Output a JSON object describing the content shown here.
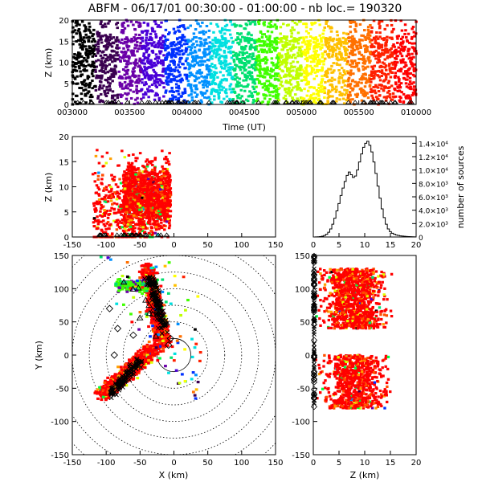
{
  "title": "ABFM - 06/17/01 00:30:00 - 01:00:00 - nb loc.= 190320",
  "chart_data": [
    {
      "panel": "time-height",
      "type": "scatter",
      "xlabel": "Time (UT)",
      "ylabel": "Z (km)",
      "x_ticks": [
        "003000",
        "003500",
        "004000",
        "004500",
        "005000",
        "005500",
        "010000"
      ],
      "y_ticks": [
        "0",
        "5",
        "10",
        "15",
        "20"
      ],
      "xlim": [
        "00:30:00",
        "01:00:00"
      ],
      "ylim": [
        0,
        20
      ],
      "color_encoding": "time (rainbow: black → purple → blue → cyan → green → yellow → red)",
      "dense_band_z_km": [
        0,
        16
      ]
    },
    {
      "panel": "x-height",
      "type": "scatter",
      "xlabel": "",
      "ylabel": "Z (km)",
      "x_ticks": [
        "-150",
        "-100",
        "-50",
        "0",
        "50",
        "100",
        "150"
      ],
      "y_ticks": [
        "0",
        "5",
        "10",
        "15",
        "20"
      ],
      "xlim": [
        -150,
        150
      ],
      "ylim": [
        0,
        20
      ],
      "dense_x_range_km": [
        -75,
        -5
      ]
    },
    {
      "panel": "height-histogram",
      "type": "step-histogram",
      "xlabel": "",
      "ylabel": "number of sources",
      "x_ticks": [
        "0",
        "5",
        "10",
        "15",
        "20"
      ],
      "y_ticks": [
        "0",
        "2.0×10³",
        "4.0×10³",
        "6.0×10³",
        "8.0×10³",
        "1.0×10⁴",
        "1.2×10⁴",
        "1.4×10⁴"
      ],
      "xlim": [
        0,
        20
      ],
      "ylim": [
        0,
        15000
      ],
      "bin_width_km": 0.4,
      "bin_start_km": 0,
      "counts": [
        0,
        10,
        30,
        60,
        120,
        220,
        400,
        700,
        1200,
        1900,
        2800,
        3900,
        5000,
        6200,
        7300,
        8300,
        9200,
        9700,
        9300,
        8900,
        9100,
        10000,
        11200,
        12400,
        13400,
        14000,
        14300,
        13700,
        12700,
        11200,
        9500,
        7600,
        5800,
        4200,
        2900,
        1900,
        1200,
        800,
        550,
        400,
        300,
        220,
        170,
        130,
        100,
        80,
        60,
        40,
        25,
        15
      ]
    },
    {
      "panel": "plan-view",
      "type": "scatter",
      "xlabel": "X (km)",
      "ylabel": "Y (km)",
      "x_ticks": [
        "-150",
        "-100",
        "-50",
        "0",
        "50",
        "100",
        "150"
      ],
      "y_ticks": [
        "-150",
        "-100",
        "-50",
        "0",
        "50",
        "100",
        "150"
      ],
      "xlim": [
        -150,
        150
      ],
      "ylim": [
        -150,
        150
      ],
      "range_rings_km": [
        25,
        50,
        75,
        100,
        125,
        150,
        175,
        200
      ],
      "station_markers": [
        [
          -95,
          70
        ],
        [
          -83,
          40
        ],
        [
          -88,
          0
        ],
        [
          -60,
          30
        ],
        [
          -5,
          25
        ],
        [
          -8,
          15
        ]
      ]
    },
    {
      "panel": "z-y",
      "type": "scatter",
      "xlabel": "Z (km)",
      "ylabel": "",
      "x_ticks": [
        "0",
        "5",
        "10",
        "15",
        "20"
      ],
      "y_ticks": [
        "-150",
        "-100",
        "-50",
        "0",
        "50",
        "100",
        "150"
      ],
      "xlim": [
        0,
        20
      ],
      "ylim": [
        -150,
        150
      ],
      "dense_y_ranges_km": [
        [
          40,
          130
        ],
        [
          -80,
          0
        ]
      ]
    }
  ]
}
